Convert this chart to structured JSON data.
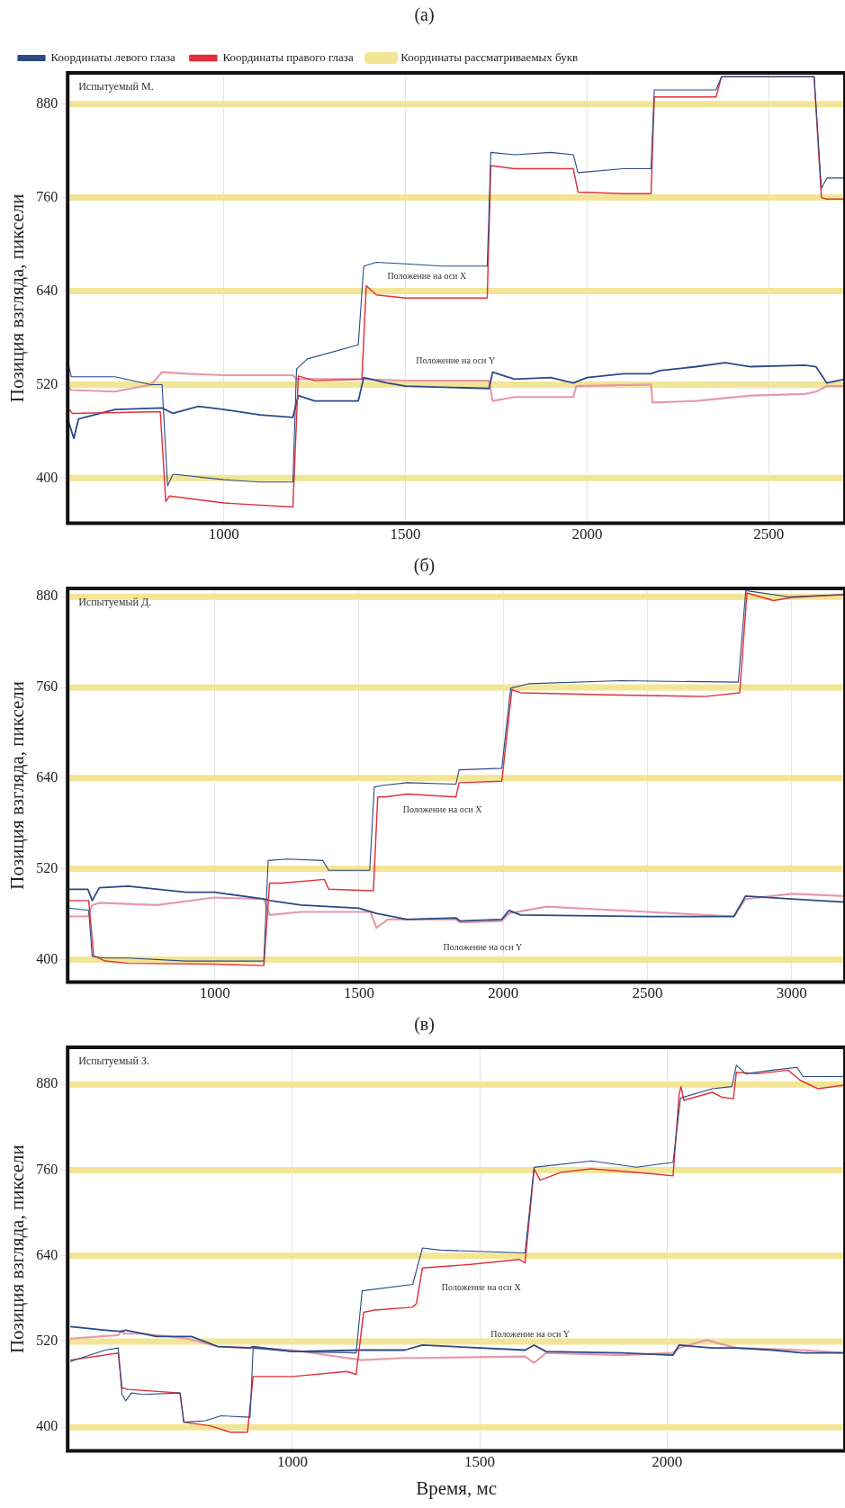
{
  "chart_data": [
    {
      "type": "line",
      "title": "(а)",
      "ylabel": "Позиция взгляда, пиксели",
      "xlim": [
        570,
        2710
      ],
      "ylim": [
        342,
        920
      ],
      "xticks": [
        1000,
        1500,
        2000,
        2500
      ],
      "yticks": [
        400,
        520,
        640,
        760,
        880
      ],
      "grid": true,
      "legend": "top left",
      "annotations": [
        "Испытуемый М.",
        "Положение на оси X",
        "Положение на оси Y"
      ],
      "series": [
        {
          "name": "Координаты рассматриваемых букв",
          "color": "#f2e596",
          "x": [
            570,
            2710
          ],
          "values": [
            400,
            400
          ]
        },
        {
          "color": "#f2e596",
          "x": [
            570,
            2710
          ],
          "values": [
            520,
            520
          ]
        },
        {
          "color": "#f2e596",
          "x": [
            570,
            2710
          ],
          "values": [
            640,
            640
          ]
        },
        {
          "color": "#f2e596",
          "x": [
            570,
            2710
          ],
          "values": [
            760,
            760
          ]
        },
        {
          "color": "#f2e596",
          "x": [
            570,
            2710
          ],
          "values": [
            880,
            880
          ]
        },
        {
          "name": "Координаты левого глаза",
          "color": "#2b4a86",
          "x": [
            570,
            580,
            700,
            800,
            830,
            845,
            860,
            1000,
            1100,
            1190,
            1200,
            1230,
            1370,
            1385,
            1420,
            1500,
            1600,
            1725,
            1735,
            1800,
            1900,
            1962,
            1975,
            2100,
            2176,
            2185,
            2355,
            2370,
            2500,
            2625,
            2645,
            2660,
            2710
          ],
          "values": [
            550,
            530,
            530,
            520,
            520,
            390,
            405,
            398,
            395,
            395,
            540,
            553,
            571,
            672,
            677,
            675,
            672,
            672,
            818,
            815,
            818,
            815,
            792,
            797,
            797,
            898,
            898,
            915,
            915,
            915,
            772,
            785,
            785
          ]
        },
        {
          "name": "Координаты правого глаза",
          "color": "#e0313a",
          "x": [
            570,
            583,
            800,
            825,
            840,
            850,
            1000,
            1190,
            1205,
            1250,
            1380,
            1392,
            1420,
            1500,
            1725,
            1735,
            1800,
            1962,
            1975,
            2100,
            2176,
            2185,
            2355,
            2370,
            2500,
            2625,
            2645,
            2660,
            2710
          ],
          "values": [
            490,
            483,
            485,
            485,
            370,
            377,
            368,
            363,
            531,
            525,
            527,
            647,
            635,
            631,
            631,
            801,
            797,
            797,
            767,
            765,
            765,
            889,
            889,
            915,
            915,
            915,
            760,
            758,
            758
          ]
        },
        {
          "color": "#2b4a86",
          "x": [
            570,
            587,
            600,
            700,
            830,
            860,
            930,
            1000,
            1100,
            1190,
            1205,
            1250,
            1370,
            1385,
            1450,
            1500,
            1730,
            1740,
            1800,
            1900,
            1962,
            2000,
            2100,
            2176,
            2200,
            2300,
            2380,
            2450,
            2600,
            2630,
            2660,
            2710
          ],
          "values": [
            476,
            451,
            476,
            488,
            490,
            483,
            492,
            488,
            481,
            478,
            506,
            499,
            499,
            529,
            522,
            518,
            515,
            536,
            527,
            529,
            522,
            529,
            534,
            534,
            538,
            543,
            548,
            543,
            545,
            543,
            522,
            527
          ]
        },
        {
          "color": "#e59aab",
          "x": [
            570,
            580,
            700,
            800,
            830,
            900,
            1000,
            1190,
            1200,
            1380,
            1500,
            1730,
            1740,
            1800,
            1962,
            1970,
            2176,
            2180,
            2300,
            2450,
            2600,
            2630,
            2660,
            2710
          ],
          "values": [
            518,
            513,
            511,
            520,
            536,
            534,
            532,
            532,
            527,
            527,
            525,
            525,
            499,
            504,
            504,
            518,
            520,
            497,
            499,
            506,
            508,
            511,
            518,
            518
          ]
        }
      ]
    },
    {
      "type": "line",
      "title": "(б)",
      "ylabel": "Позиция взгляда, пиксели",
      "xlim": [
        490,
        3185
      ],
      "ylim": [
        370,
        891
      ],
      "xticks": [
        1000,
        1500,
        2000,
        2500,
        3000
      ],
      "yticks": [
        400,
        520,
        640,
        760,
        880
      ],
      "grid": true,
      "annotations": [
        "Испытуемый Д.",
        "Положение на оси X",
        "Положение на оси Y"
      ],
      "series": [
        {
          "color": "#f2e596",
          "x": [
            490,
            3185
          ],
          "values": [
            400,
            400
          ]
        },
        {
          "color": "#f2e596",
          "x": [
            490,
            3185
          ],
          "values": [
            520,
            520
          ]
        },
        {
          "color": "#f2e596",
          "x": [
            490,
            3185
          ],
          "values": [
            640,
            640
          ]
        },
        {
          "color": "#f2e596",
          "x": [
            490,
            3185
          ],
          "values": [
            760,
            760
          ]
        },
        {
          "color": "#f2e596",
          "x": [
            490,
            3185
          ],
          "values": [
            880,
            880
          ]
        },
        {
          "color": "#2b4a86",
          "x": [
            492,
            563,
            575,
            620,
            700,
            900,
            1170,
            1185,
            1250,
            1374,
            1395,
            1537,
            1553,
            1574,
            1667,
            1836,
            1847,
            1995,
            2026,
            2090,
            2407,
            2815,
            2841,
            2862,
            2989,
            3185
          ],
          "values": [
            468,
            465,
            404,
            402,
            402,
            398,
            398,
            531,
            533,
            531,
            518,
            518,
            628,
            630,
            634,
            632,
            651,
            653,
            759,
            765,
            769,
            767,
            888,
            887,
            880,
            883
          ]
        },
        {
          "color": "#e0313a",
          "x": [
            492,
            563,
            580,
            620,
            700,
            1000,
            1170,
            1190,
            1230,
            1380,
            1395,
            1550,
            1565,
            1590,
            1667,
            1836,
            1847,
            1995,
            2030,
            2060,
            2400,
            2700,
            2820,
            2845,
            2937,
            3000,
            3185
          ],
          "values": [
            478,
            478,
            405,
            398,
            395,
            394,
            392,
            501,
            501,
            506,
            493,
            491,
            615,
            615,
            619,
            615,
            634,
            636,
            757,
            753,
            750,
            748,
            753,
            885,
            875,
            879,
            883
          ]
        },
        {
          "color": "#2b4a86",
          "x": [
            492,
            560,
            575,
            600,
            700,
            900,
            1000,
            1170,
            1190,
            1300,
            1500,
            1560,
            1667,
            1836,
            1850,
            1995,
            2020,
            2060,
            2500,
            2800,
            2840,
            3000,
            3185
          ],
          "values": [
            493,
            493,
            478,
            495,
            497,
            489,
            489,
            480,
            478,
            472,
            468,
            461,
            453,
            455,
            451,
            453,
            465,
            459,
            457,
            457,
            484,
            480,
            476
          ]
        },
        {
          "color": "#e59aab",
          "x": [
            492,
            560,
            575,
            600,
            800,
            1000,
            1170,
            1190,
            1300,
            1540,
            1560,
            1600,
            1667,
            1836,
            1850,
            1995,
            2020,
            2150,
            2500,
            2800,
            2840,
            3000,
            3185
          ],
          "values": [
            457,
            457,
            472,
            475,
            472,
            482,
            480,
            459,
            463,
            463,
            442,
            453,
            453,
            453,
            449,
            451,
            461,
            470,
            463,
            457,
            480,
            487,
            484
          ]
        }
      ]
    },
    {
      "type": "line",
      "title": "(в)",
      "xlabel": "Время, мс",
      "ylabel": "Позиция взгляда, пиксели",
      "xlim": [
        400,
        2475
      ],
      "ylim": [
        367,
        932
      ],
      "xticks": [
        1000,
        1500,
        2000
      ],
      "yticks": [
        400,
        520,
        640,
        760,
        880
      ],
      "grid": true,
      "annotations": [
        "Испытуемый З.",
        "Положение на оси X",
        "Положение на оси Y"
      ],
      "series": [
        {
          "color": "#f2e596",
          "x": [
            400,
            2475
          ],
          "values": [
            400,
            400
          ]
        },
        {
          "color": "#f2e596",
          "x": [
            400,
            2475
          ],
          "values": [
            520,
            520
          ]
        },
        {
          "color": "#f2e596",
          "x": [
            400,
            2475
          ],
          "values": [
            640,
            640
          ]
        },
        {
          "color": "#f2e596",
          "x": [
            400,
            2475
          ],
          "values": [
            760,
            760
          ]
        },
        {
          "color": "#f2e596",
          "x": [
            400,
            2475
          ],
          "values": [
            880,
            880
          ]
        },
        {
          "color": "#2b4a86",
          "x": [
            407,
            500,
            535,
            545,
            555,
            570,
            600,
            700,
            710,
            768,
            809,
            887,
            895,
            1000,
            1170,
            1186,
            1321,
            1347,
            1395,
            1621,
            1645,
            1798,
            1919,
            2016,
            2036,
            2121,
            2173,
            2185,
            2210,
            2282,
            2347,
            2363,
            2473
          ],
          "values": [
            492,
            508,
            511,
            446,
            437,
            448,
            446,
            448,
            407,
            409,
            416,
            414,
            511,
            506,
            504,
            591,
            600,
            651,
            648,
            644,
            764,
            773,
            764,
            771,
            861,
            874,
            877,
            907,
            895,
            900,
            904,
            891,
            891
          ]
        },
        {
          "color": "#e0313a",
          "x": [
            407,
            535,
            545,
            560,
            700,
            710,
            780,
            834,
            880,
            895,
            1000,
            1145,
            1170,
            1190,
            1219,
            1320,
            1331,
            1347,
            1476,
            1605,
            1621,
            1645,
            1661,
            1718,
            1798,
            1960,
            2016,
            2032,
            2037,
            2045,
            2121,
            2147,
            2177,
            2185,
            2242,
            2323,
            2355,
            2403,
            2473
          ],
          "values": [
            494,
            504,
            455,
            453,
            448,
            407,
            402,
            393,
            393,
            471,
            471,
            478,
            474,
            561,
            564,
            568,
            573,
            623,
            628,
            635,
            630,
            762,
            746,
            757,
            762,
            755,
            752,
            865,
            877,
            858,
            869,
            862,
            860,
            897,
            895,
            900,
            886,
            874,
            879
          ]
        },
        {
          "color": "#2b4a86",
          "x": [
            407,
            500,
            545,
            555,
            637,
            730,
            801,
            887,
            895,
            1000,
            1185,
            1300,
            1347,
            1621,
            1645,
            1677,
            1879,
            2016,
            2032,
            2121,
            2185,
            2282,
            2363,
            2473
          ],
          "values": [
            541,
            536,
            534,
            536,
            527,
            527,
            513,
            511,
            513,
            506,
            508,
            508,
            515,
            508,
            515,
            506,
            504,
            501,
            515,
            511,
            511,
            508,
            504,
            504
          ]
        },
        {
          "color": "#e59aab",
          "x": [
            407,
            535,
            545,
            550,
            600,
            720,
            800,
            895,
            1000,
            1185,
            1300,
            1347,
            1621,
            1645,
            1677,
            1879,
            2016,
            2032,
            2105,
            2185,
            2363,
            2473
          ],
          "values": [
            524,
            529,
            536,
            531,
            531,
            524,
            513,
            511,
            508,
            494,
            497,
            497,
            499,
            490,
            504,
            501,
            504,
            511,
            522,
            511,
            508,
            504
          ]
        }
      ]
    }
  ]
}
